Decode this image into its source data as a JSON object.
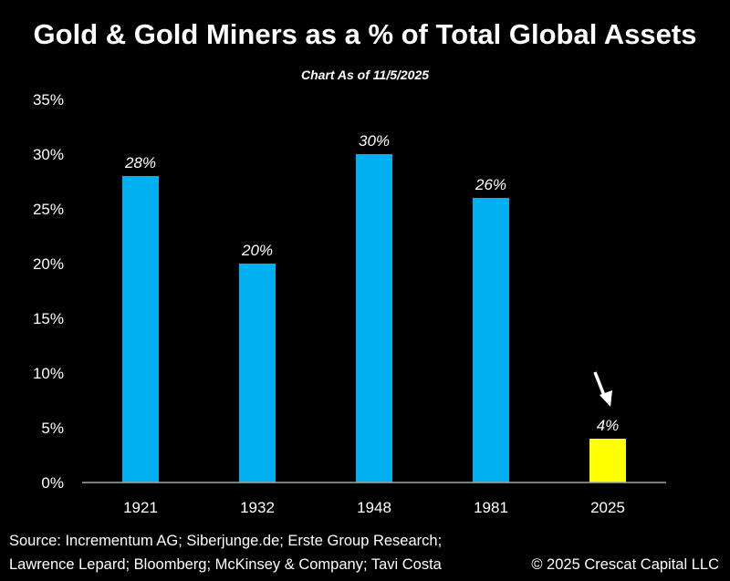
{
  "chart_data": {
    "type": "bar",
    "title": "Gold & Gold Miners as a % of Total Global Assets",
    "subtitle": "Chart As of 11/5/2025",
    "categories": [
      "1921",
      "1932",
      "1948",
      "1981",
      "2025"
    ],
    "values": [
      28,
      20,
      30,
      26,
      4
    ],
    "data_labels": [
      "28%",
      "20%",
      "30%",
      "26%",
      "4%"
    ],
    "colors": [
      "#00b0f0",
      "#00b0f0",
      "#00b0f0",
      "#00b0f0",
      "#ffff00"
    ],
    "ylim": [
      0,
      35
    ],
    "yticks": [
      "0%",
      "5%",
      "10%",
      "15%",
      "20%",
      "25%",
      "30%",
      "35%"
    ],
    "xlabel": "",
    "ylabel": "",
    "grid": false,
    "annotation": "arrow pointing to 2025 bar"
  },
  "footer": {
    "source_line1": "Source: Incrementum AG; Siberjunge.de; Erste Group Research;",
    "source_line2": "Lawrence Lepard; Bloomberg; McKinsey & Company; Tavi Costa",
    "copyright": "© 2025 Crescat Capital LLC"
  }
}
